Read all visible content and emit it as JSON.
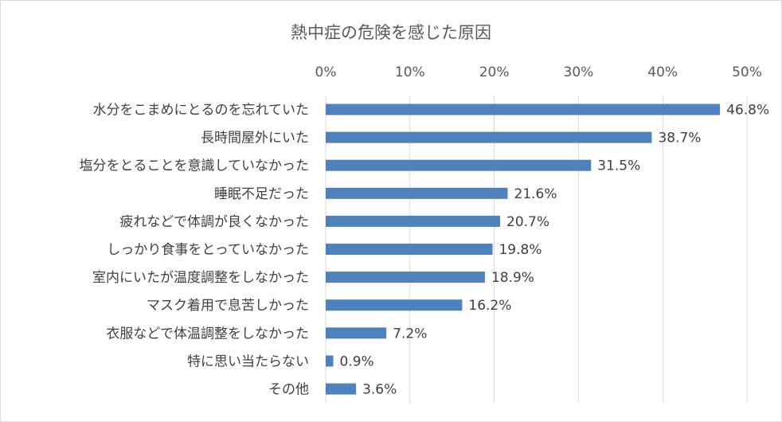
{
  "chart_data": {
    "type": "bar",
    "orientation": "horizontal",
    "title": "熱中症の危険を感じた原因",
    "xlabel": "",
    "ylabel": "",
    "xlim": [
      0,
      50
    ],
    "x_ticks": [
      "0%",
      "10%",
      "20%",
      "30%",
      "40%",
      "50%"
    ],
    "x_axis_position": "top",
    "grid": true,
    "legend": "none",
    "bar_color": "#4f81bd",
    "categories": [
      "水分をこまめにとるのを忘れていた",
      "長時間屋外にいた",
      "塩分をとることを意識していなかった",
      "睡眠不足だった",
      "疲れなどで体調が良くなかった",
      "しっかり食事をとっていなかった",
      "室内にいたが温度調整をしなかった",
      "マスク着用で息苦しかった",
      "衣服などで体温調整をしなかった",
      "特に思い当たらない",
      "その他"
    ],
    "values": [
      46.8,
      38.7,
      31.5,
      21.6,
      20.7,
      19.8,
      18.9,
      16.2,
      7.2,
      0.9,
      3.6
    ],
    "data_labels": [
      "46.8%",
      "38.7%",
      "31.5%",
      "21.6%",
      "20.7%",
      "19.8%",
      "18.9%",
      "16.2%",
      "7.2%",
      "0.9%",
      "3.6%"
    ]
  }
}
